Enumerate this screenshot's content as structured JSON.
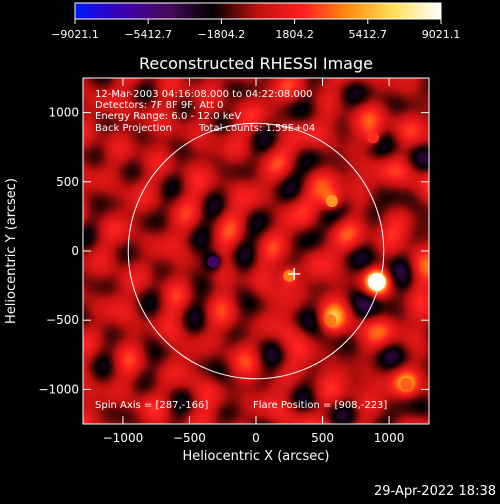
{
  "colorbar": {
    "tick_labels": [
      "-9021.1",
      "-5412.7",
      "-1804.2",
      "1804.2",
      "5412.7",
      "9021.1"
    ],
    "range": [
      -9021.1,
      9021.1
    ],
    "colormap": [
      "#0018ff",
      "#3a00b0",
      "#4a0a60",
      "#000000",
      "#c01010",
      "#ff2020",
      "#ff9010",
      "#ffe060",
      "#ffffff"
    ]
  },
  "chart_data": {
    "type": "heatmap",
    "title": "Reconstructed RHESSI Image",
    "xlabel": "Heliocentric X (arcsec)",
    "ylabel": "Heliocentric Y (arcsec)",
    "xlim": [
      -1300,
      1300
    ],
    "ylim": [
      -1250,
      1250
    ],
    "x_ticks": [
      -1000,
      -500,
      0,
      500,
      1000
    ],
    "y_ticks": [
      1000,
      500,
      0,
      -500,
      -1000
    ],
    "x_tick_labels": [
      "−1000",
      "−500",
      "0",
      "500",
      "1000"
    ],
    "y_tick_labels": [
      "1000",
      "500",
      "0",
      "−500",
      "−1000"
    ],
    "annotations": {
      "time_range": "12-Mar-2003 04:16:08.000 to 04:22:08.000",
      "detectors": "Detectors: 7F 8F 9F, Att 0",
      "energy_range": "Energy Range: 6.0 - 12.0 keV",
      "method": "Back Projection",
      "total_counts": "Total counts: 1.59E+04",
      "spin_axis": "Spin Axis = [287,-166]",
      "flare_position": "Flare Position = [908,-223]"
    },
    "solar_disk": {
      "center": [
        0,
        0
      ],
      "radius": 960
    },
    "cross_marker": [
      287,
      -166
    ],
    "sources": [
      {
        "x": 908,
        "y": -223,
        "value": 9021.1
      },
      {
        "x": 570,
        "y": 360,
        "value": 5200
      },
      {
        "x": 250,
        "y": -180,
        "value": 4500
      },
      {
        "x": 560,
        "y": -500,
        "value": 3800
      },
      {
        "x": 1130,
        "y": -960,
        "value": 3200
      },
      {
        "x": 880,
        "y": 820,
        "value": 2600
      },
      {
        "x": -320,
        "y": -80,
        "value": -5000
      }
    ]
  },
  "footer": {
    "date": "29-Apr-2022 18:38"
  }
}
